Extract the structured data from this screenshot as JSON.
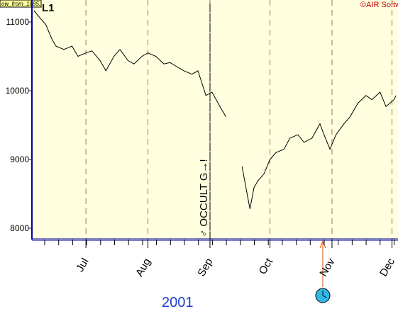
{
  "chart_data": {
    "type": "line",
    "window_label": "ow_from_1885...",
    "panel_label": "L1",
    "copyright": "©AIR Softw",
    "annotation": "♂ OCCULT G→!",
    "year_label": "2001",
    "color": "#000000",
    "x": [
      156,
      159,
      162,
      165,
      167,
      171,
      175,
      178,
      182,
      185,
      189,
      192,
      196,
      199,
      203,
      206,
      210,
      213,
      217,
      221,
      224,
      228,
      231,
      235,
      238,
      242,
      245,
      249,
      252,
      257,
      260,
      262,
      264,
      266,
      268,
      271,
      274,
      277,
      281,
      284,
      288,
      291,
      295,
      299,
      301,
      304,
      307,
      311,
      314,
      318,
      322,
      325,
      329,
      332,
      336,
      337
    ],
    "values": [
      11165,
      11060,
      10960,
      10750,
      10650,
      10600,
      10650,
      10500,
      10550,
      10580,
      10440,
      10290,
      10500,
      10600,
      10440,
      10390,
      10500,
      10550,
      10500,
      10390,
      10410,
      10340,
      10290,
      10240,
      10290,
      9930,
      9980,
      9770,
      9620,
      null,
      8900,
      8590,
      8280,
      8590,
      8690,
      8790,
      9000,
      9100,
      9150,
      9310,
      9360,
      9250,
      9310,
      9520,
      9360,
      9150,
      9360,
      9520,
      9620,
      9820,
      9930,
      9870,
      9980,
      9770,
      9870,
      9930
    ],
    "xlim": [
      155,
      338
    ],
    "xticks": [
      {
        "value": 182,
        "label": "Jul"
      },
      {
        "value": 213,
        "label": "Aug"
      },
      {
        "value": 244,
        "label": "Sep"
      },
      {
        "value": 274,
        "label": "Oct"
      },
      {
        "value": 305,
        "label": "Nov"
      },
      {
        "value": 335,
        "label": "Dec"
      }
    ],
    "ylim": [
      7835,
      11320
    ],
    "yticks": [
      8000,
      9000,
      10000,
      11000
    ],
    "grid": true
  }
}
